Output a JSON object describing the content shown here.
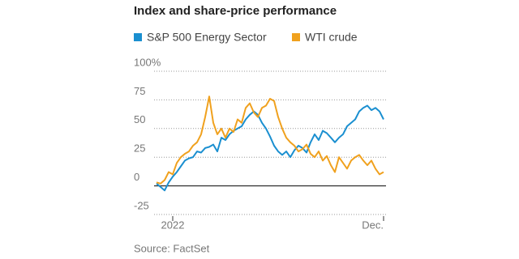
{
  "chart_data": {
    "type": "line",
    "title": "Index and share-price performance",
    "source": "Source: FactSet",
    "categories": [
      null,
      null,
      null,
      null,
      "2022",
      null,
      null,
      null,
      null,
      null,
      null,
      null,
      null,
      null,
      null,
      null,
      null,
      null,
      null,
      null,
      null,
      null,
      null,
      null,
      null,
      null,
      null,
      null,
      null,
      null,
      null,
      null,
      null,
      null,
      null,
      null,
      null,
      null,
      null,
      null,
      null,
      null,
      null,
      null,
      null,
      null,
      null,
      null,
      null,
      null,
      null,
      null,
      null,
      null,
      null,
      null,
      "Dec."
    ],
    "series": [
      {
        "name": "S&P 500 Energy Sector",
        "color": "#1a8fd0",
        "values": [
          2,
          -1,
          -4,
          3,
          8,
          12,
          17,
          22,
          24,
          25,
          30,
          29,
          33,
          34,
          36,
          30,
          42,
          40,
          45,
          48,
          50,
          52,
          58,
          62,
          65,
          62,
          55,
          50,
          43,
          35,
          30,
          27,
          30,
          25,
          31,
          35,
          33,
          29,
          38,
          45,
          40,
          48,
          46,
          42,
          38,
          42,
          45,
          52,
          55,
          58,
          65,
          68,
          70,
          66,
          68,
          65,
          58
        ]
      },
      {
        "name": "WTI crude",
        "color": "#f0a11e",
        "values": [
          3,
          2,
          5,
          12,
          10,
          20,
          25,
          28,
          30,
          35,
          38,
          45,
          60,
          78,
          55,
          45,
          50,
          42,
          50,
          47,
          58,
          55,
          68,
          72,
          64,
          60,
          68,
          70,
          76,
          74,
          60,
          50,
          42,
          38,
          35,
          30,
          32,
          36,
          28,
          25,
          30,
          22,
          26,
          18,
          12,
          25,
          20,
          15,
          22,
          25,
          27,
          22,
          18,
          22,
          15,
          10,
          12
        ]
      }
    ],
    "ylim": [
      -25,
      100
    ],
    "yticks": [
      {
        "value": 100,
        "label": "100%"
      },
      75,
      50,
      25,
      0,
      -25
    ],
    "grid": true
  }
}
